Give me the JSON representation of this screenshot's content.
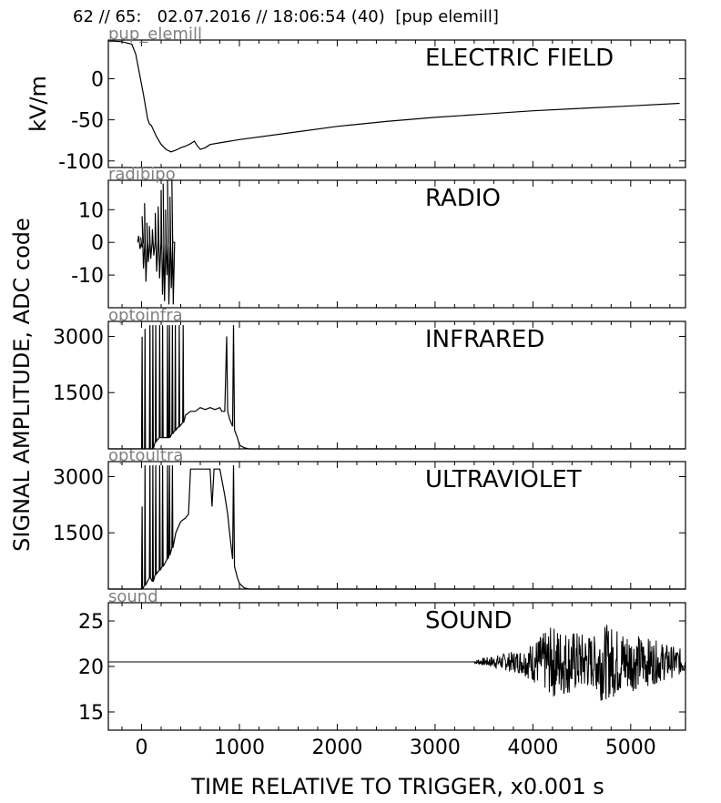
{
  "header": {
    "title": "62 // 65:   02.07.2016 // 18:06:54 (40)  [pup elemill]"
  },
  "chart_data": {
    "type": "line",
    "xlabel": "TIME RELATIVE TO TRIGGER,   x0.001 s",
    "xlim": [
      -340,
      5560
    ],
    "xticks": [
      0,
      1000,
      2000,
      3000,
      4000,
      5000
    ],
    "shared_ylabel": "SIGNAL AMPLITUDE,  ADC code",
    "panels": [
      {
        "id": "efield",
        "channel": "pup_elemill",
        "title": "ELECTRIC FIELD",
        "ylabel": "kV/m",
        "ylim": [
          -108,
          47
        ],
        "yticks": [
          0,
          -50,
          -100
        ],
        "points": [
          [
            -340,
            46
          ],
          [
            -200,
            45
          ],
          [
            -100,
            42
          ],
          [
            -60,
            30
          ],
          [
            -20,
            5
          ],
          [
            20,
            -20
          ],
          [
            60,
            -48
          ],
          [
            80,
            -55
          ],
          [
            100,
            -57
          ],
          [
            120,
            -62
          ],
          [
            150,
            -70
          ],
          [
            200,
            -80
          ],
          [
            250,
            -86
          ],
          [
            300,
            -89
          ],
          [
            350,
            -87
          ],
          [
            400,
            -84
          ],
          [
            450,
            -82
          ],
          [
            500,
            -79
          ],
          [
            540,
            -76
          ],
          [
            560,
            -80
          ],
          [
            600,
            -86
          ],
          [
            650,
            -84
          ],
          [
            700,
            -80
          ],
          [
            800,
            -78
          ],
          [
            1000,
            -74
          ],
          [
            1500,
            -66
          ],
          [
            2000,
            -58
          ],
          [
            2500,
            -52
          ],
          [
            3000,
            -47
          ],
          [
            3500,
            -43
          ],
          [
            4000,
            -39
          ],
          [
            4500,
            -36
          ],
          [
            5000,
            -33
          ],
          [
            5500,
            -30
          ]
        ]
      },
      {
        "id": "radio",
        "channel": "radibipo",
        "title": "RADIO",
        "ylim": [
          -20,
          19
        ],
        "yticks": [
          10,
          0,
          -10
        ],
        "bursts": [
          {
            "x": -30,
            "amp": 2
          },
          {
            "x": -10,
            "amp": 1.5
          },
          {
            "x": 5,
            "amp": 8
          },
          {
            "x": 30,
            "amp": 12
          },
          {
            "x": 55,
            "amp": 6
          },
          {
            "x": 80,
            "amp": 5
          },
          {
            "x": 110,
            "amp": 4
          },
          {
            "x": 140,
            "amp": 9
          },
          {
            "x": 170,
            "amp": 11
          },
          {
            "x": 200,
            "amp": 16
          },
          {
            "x": 220,
            "amp": 18
          },
          {
            "x": 245,
            "amp": 10
          },
          {
            "x": 265,
            "amp": 19
          },
          {
            "x": 290,
            "amp": 14
          },
          {
            "x": 310,
            "amp": 19
          }
        ]
      },
      {
        "id": "infrared",
        "channel": "optoinfra",
        "title": "INFRARED",
        "ylim": [
          0,
          3400
        ],
        "yticks": [
          3000,
          1500
        ],
        "points": [
          [
            -340,
            0
          ],
          [
            0,
            0
          ],
          [
            5,
            2990
          ],
          [
            10,
            0
          ],
          [
            30,
            0
          ],
          [
            35,
            3200
          ],
          [
            40,
            0
          ],
          [
            80,
            0
          ],
          [
            85,
            3300
          ],
          [
            90,
            0
          ],
          [
            110,
            0
          ],
          [
            115,
            3300
          ],
          [
            120,
            0
          ],
          [
            140,
            200
          ],
          [
            145,
            3300
          ],
          [
            150,
            200
          ],
          [
            180,
            300
          ],
          [
            185,
            3300
          ],
          [
            190,
            300
          ],
          [
            210,
            300
          ],
          [
            215,
            3300
          ],
          [
            220,
            300
          ],
          [
            260,
            300
          ],
          [
            265,
            3300
          ],
          [
            270,
            300
          ],
          [
            280,
            300
          ],
          [
            285,
            3300
          ],
          [
            290,
            300
          ],
          [
            310,
            400
          ],
          [
            315,
            3300
          ],
          [
            320,
            400
          ],
          [
            340,
            500
          ],
          [
            345,
            3300
          ],
          [
            350,
            500
          ],
          [
            380,
            600
          ],
          [
            385,
            3300
          ],
          [
            390,
            600
          ],
          [
            420,
            700
          ],
          [
            425,
            3300
          ],
          [
            430,
            700
          ],
          [
            450,
            900
          ],
          [
            500,
            1000
          ],
          [
            550,
            1000
          ],
          [
            600,
            1100
          ],
          [
            650,
            1050
          ],
          [
            700,
            1100
          ],
          [
            750,
            1050
          ],
          [
            800,
            1100
          ],
          [
            820,
            1000
          ],
          [
            850,
            1000
          ],
          [
            870,
            3000
          ],
          [
            880,
            1000
          ],
          [
            900,
            800
          ],
          [
            930,
            600
          ],
          [
            940,
            3300
          ],
          [
            950,
            500
          ],
          [
            980,
            300
          ],
          [
            1000,
            100
          ],
          [
            1050,
            30
          ],
          [
            1100,
            0
          ],
          [
            5560,
            0
          ]
        ]
      },
      {
        "id": "ultraviolet",
        "channel": "optoultra",
        "title": "ULTRAVIOLET",
        "ylim": [
          0,
          3400
        ],
        "yticks": [
          3000,
          1500
        ],
        "points": [
          [
            -340,
            0
          ],
          [
            0,
            0
          ],
          [
            5,
            2200
          ],
          [
            10,
            0
          ],
          [
            30,
            100
          ],
          [
            35,
            3300
          ],
          [
            40,
            100
          ],
          [
            80,
            300
          ],
          [
            85,
            3300
          ],
          [
            90,
            300
          ],
          [
            110,
            200
          ],
          [
            115,
            3300
          ],
          [
            120,
            200
          ],
          [
            140,
            400
          ],
          [
            145,
            3300
          ],
          [
            150,
            400
          ],
          [
            180,
            500
          ],
          [
            185,
            3300
          ],
          [
            190,
            500
          ],
          [
            210,
            600
          ],
          [
            215,
            3300
          ],
          [
            220,
            600
          ],
          [
            260,
            800
          ],
          [
            265,
            3300
          ],
          [
            270,
            800
          ],
          [
            280,
            900
          ],
          [
            285,
            3300
          ],
          [
            290,
            900
          ],
          [
            310,
            1100
          ],
          [
            315,
            3300
          ],
          [
            320,
            1100
          ],
          [
            350,
            1500
          ],
          [
            400,
            1800
          ],
          [
            450,
            1900
          ],
          [
            480,
            2000
          ],
          [
            500,
            3200
          ],
          [
            600,
            3200
          ],
          [
            650,
            3200
          ],
          [
            700,
            3200
          ],
          [
            720,
            2200
          ],
          [
            740,
            3200
          ],
          [
            800,
            3200
          ],
          [
            850,
            2500
          ],
          [
            880,
            2000
          ],
          [
            900,
            1500
          ],
          [
            930,
            800
          ],
          [
            940,
            3300
          ],
          [
            950,
            600
          ],
          [
            980,
            300
          ],
          [
            1000,
            150
          ],
          [
            1050,
            30
          ],
          [
            1100,
            0
          ],
          [
            5560,
            0
          ]
        ]
      },
      {
        "id": "sound",
        "channel": "sound",
        "title": "SOUND",
        "ylim": [
          13,
          27
        ],
        "yticks": [
          25,
          20,
          15
        ],
        "baseline": 20.5,
        "noise_start": 3400,
        "noise_growth_end": 3900,
        "peak_amp_at_4200": 4,
        "peak_amp_at_4800": 4,
        "tail_amp_at_5500": 1.5
      }
    ]
  }
}
